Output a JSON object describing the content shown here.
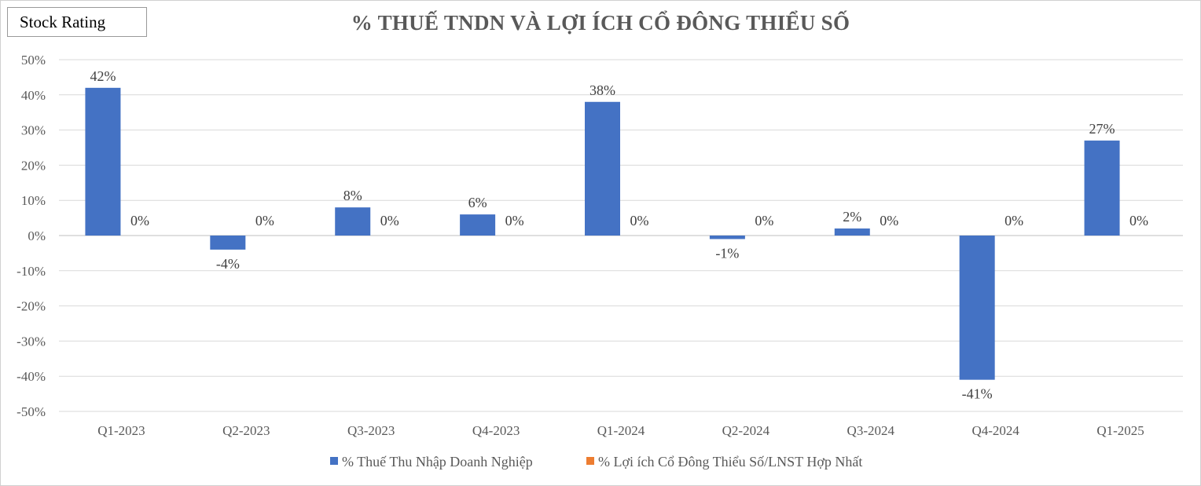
{
  "badge": {
    "label": "Stock Rating"
  },
  "chart_data": {
    "type": "bar",
    "title": "% THUẾ TNDN VÀ LỢI ÍCH CỔ ĐÔNG THIỂU SỐ",
    "xlabel": "",
    "ylabel": "",
    "ylim": [
      -0.5,
      0.5
    ],
    "yticks": [
      0.5,
      0.4,
      0.3,
      0.2,
      0.1,
      0,
      -0.1,
      -0.2,
      -0.3,
      -0.4,
      -0.5
    ],
    "ytick_labels": [
      "50%",
      "40%",
      "30%",
      "20%",
      "10%",
      "0%",
      "-10%",
      "-20%",
      "-30%",
      "-40%",
      "-50%"
    ],
    "categories": [
      "Q1-2023",
      "Q2-2023",
      "Q3-2023",
      "Q4-2023",
      "Q1-2024",
      "Q2-2024",
      "Q3-2024",
      "Q4-2024",
      "Q1-2025"
    ],
    "series": [
      {
        "name": "% Thuế Thu Nhập Doanh Nghiệp",
        "color": "#4472C4",
        "values": [
          0.42,
          -0.04,
          0.08,
          0.06,
          0.38,
          -0.01,
          0.02,
          -0.41,
          0.27
        ],
        "labels": [
          "42%",
          "-4%",
          "8%",
          "6%",
          "38%",
          "-1%",
          "2%",
          "-41%",
          "27%"
        ]
      },
      {
        "name": "% Lợi ích Cổ Đông Thiểu Số/LNST Hợp Nhất",
        "color": "#ED7D31",
        "values": [
          0,
          0,
          0,
          0,
          0,
          0,
          0,
          0,
          0
        ],
        "labels": [
          "0%",
          "0%",
          "0%",
          "0%",
          "0%",
          "0%",
          "0%",
          "0%",
          "0%"
        ]
      }
    ],
    "grid": true,
    "legend": "bottom"
  }
}
